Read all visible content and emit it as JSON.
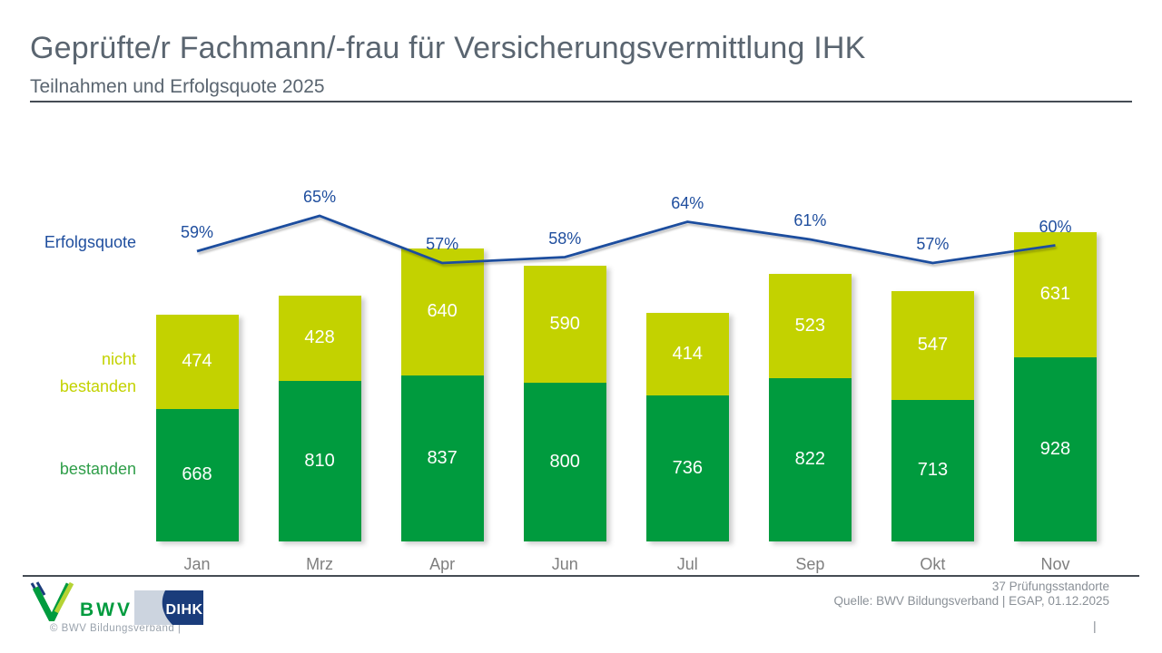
{
  "header": {
    "title": "Geprüfte/r Fachmann/-frau für Versicherungsvermittlung IHK",
    "subtitle": "Teilnahmen und Erfolgsquote 2025"
  },
  "chart_data": {
    "type": "stacked-bar+line",
    "categories": [
      "Jan",
      "Mrz",
      "Apr",
      "Jun",
      "Jul",
      "Sep",
      "Okt",
      "Nov"
    ],
    "series": [
      {
        "name": "bestanden",
        "color": "#009b3e",
        "values": [
          668,
          810,
          837,
          800,
          736,
          822,
          713,
          928
        ]
      },
      {
        "name": "nicht bestanden",
        "color": "#c3d200",
        "values": [
          474,
          428,
          640,
          590,
          414,
          523,
          547,
          631
        ]
      }
    ],
    "line": {
      "name": "Erfolgsquote",
      "color": "#1f4e9e",
      "unit": "%",
      "values": [
        59,
        65,
        57,
        58,
        64,
        61,
        57,
        60
      ]
    },
    "legend": {
      "erfolgsquote": "Erfolgsquote",
      "nicht_bestanden_line1": "nicht",
      "nicht_bestanden_line2": "bestanden",
      "bestanden": "bestanden"
    },
    "value_labels_shown": true,
    "grid": false,
    "axes_shown": false
  },
  "footer": {
    "standorte": "37 Prüfungsstandorte",
    "quelle": "Quelle: BWV Bildungsverband | EGAP, 01.12.2025",
    "copyright": "©  BWV Bildungsverband  |",
    "page_separator": "|"
  },
  "logos": {
    "bwv_label": "BWV",
    "dihk_label": "DIHK"
  },
  "colors": {
    "bestanden_green": "#009b3e",
    "nicht_bestanden_yellowgreen": "#c3d200",
    "erfolgsquote_blue": "#1f4e9e",
    "title_gray": "#5a6570",
    "axis_gray": "#7f7f7f",
    "dihk_dark_blue": "#1a3c7b",
    "dihk_light_blue": "#ccd4df",
    "bwv_accent_yellowgreen": "#b5d334"
  }
}
